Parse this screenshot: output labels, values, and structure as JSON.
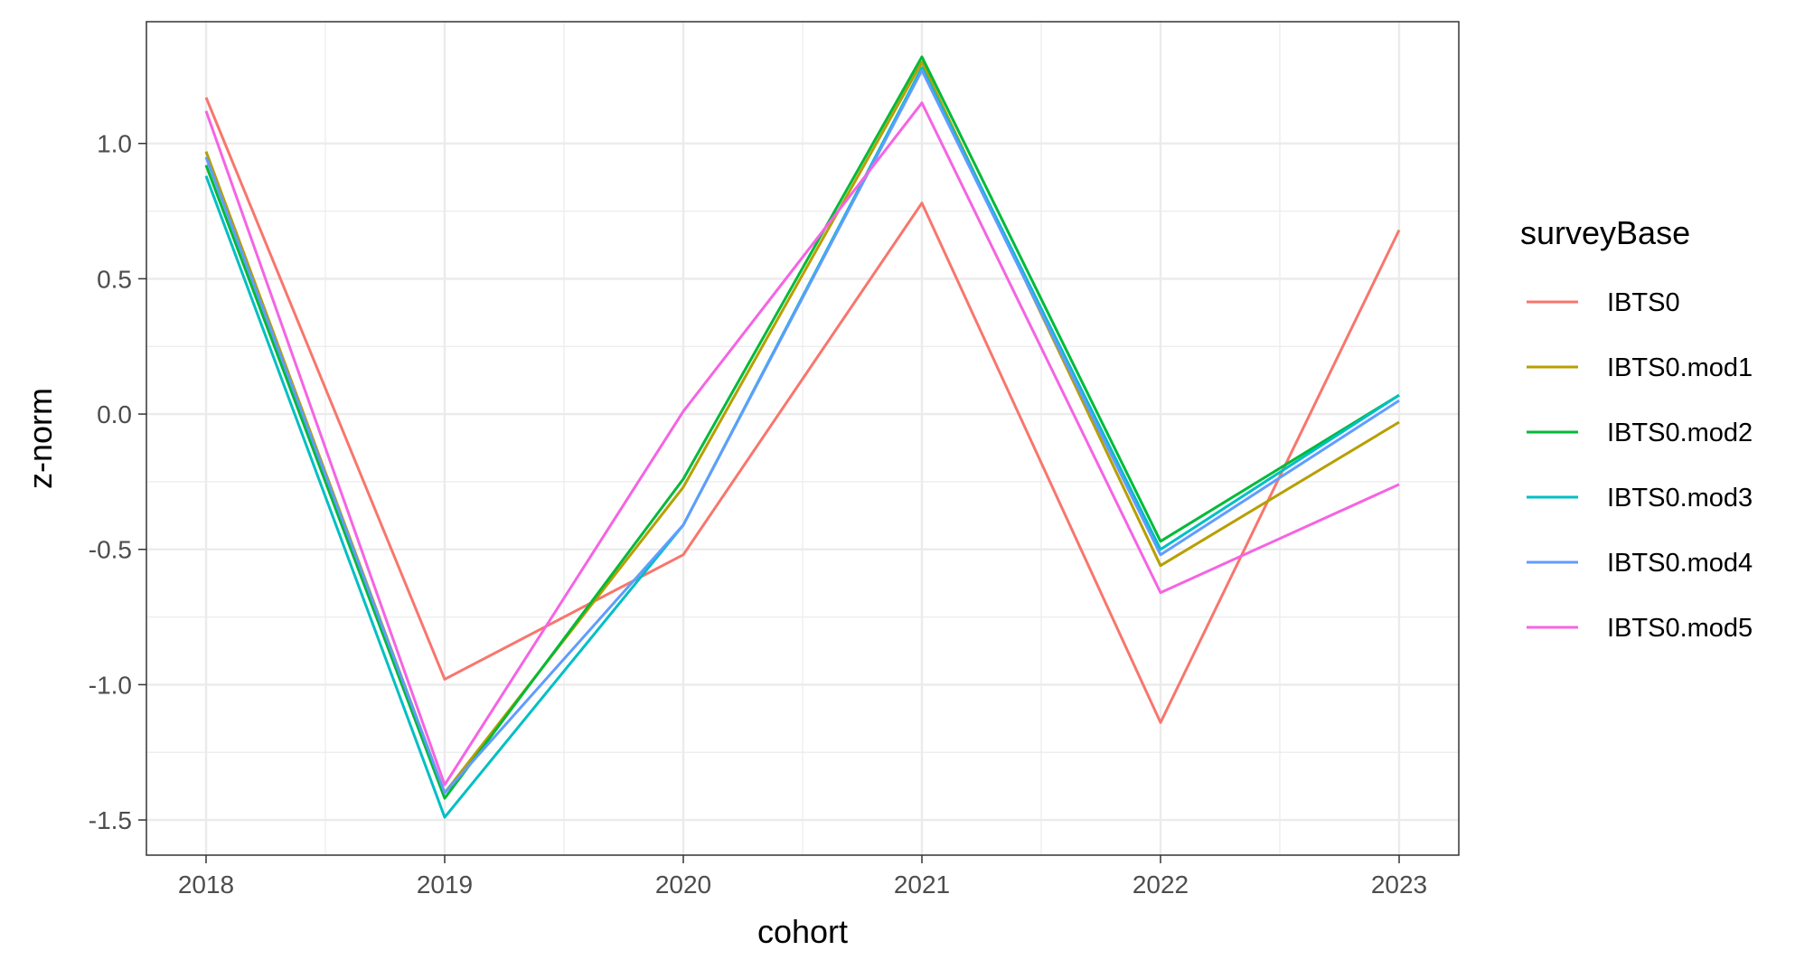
{
  "chart_data": {
    "type": "line",
    "xlabel": "cohort",
    "ylabel": "z-norm",
    "x": [
      2018,
      2019,
      2020,
      2021,
      2022,
      2023
    ],
    "x_tick_labels": [
      "2018",
      "2019",
      "2020",
      "2021",
      "2022",
      "2023"
    ],
    "xlim": [
      2017.75,
      2023.25
    ],
    "ylim": [
      -1.63,
      1.45
    ],
    "y_ticks": [
      -1.5,
      -1.0,
      -0.5,
      0.0,
      0.5,
      1.0
    ],
    "y_tick_labels": [
      "-1.5",
      "-1.0",
      "-0.5",
      "0.0",
      "0.5",
      "1.0"
    ],
    "grid": true,
    "legend": {
      "title": "surveyBase",
      "position": "right"
    },
    "series": [
      {
        "name": "IBTS0",
        "color": "#F8766D",
        "values": [
          1.17,
          -0.98,
          -0.52,
          0.78,
          -1.14,
          0.68
        ]
      },
      {
        "name": "IBTS0.mod1",
        "color": "#B79F00",
        "values": [
          0.97,
          -1.4,
          -0.27,
          1.3,
          -0.56,
          -0.03
        ]
      },
      {
        "name": "IBTS0.mod2",
        "color": "#00BA38",
        "values": [
          0.92,
          -1.42,
          -0.24,
          1.32,
          -0.47,
          0.07
        ]
      },
      {
        "name": "IBTS0.mod3",
        "color": "#00BFC4",
        "values": [
          0.88,
          -1.49,
          -0.41,
          1.28,
          -0.5,
          0.07
        ]
      },
      {
        "name": "IBTS0.mod4",
        "color": "#619CFF",
        "values": [
          0.95,
          -1.4,
          -0.41,
          1.27,
          -0.52,
          0.05
        ]
      },
      {
        "name": "IBTS0.mod5",
        "color": "#F564E3",
        "values": [
          1.12,
          -1.37,
          0.01,
          1.15,
          -0.66,
          -0.26
        ]
      }
    ]
  }
}
